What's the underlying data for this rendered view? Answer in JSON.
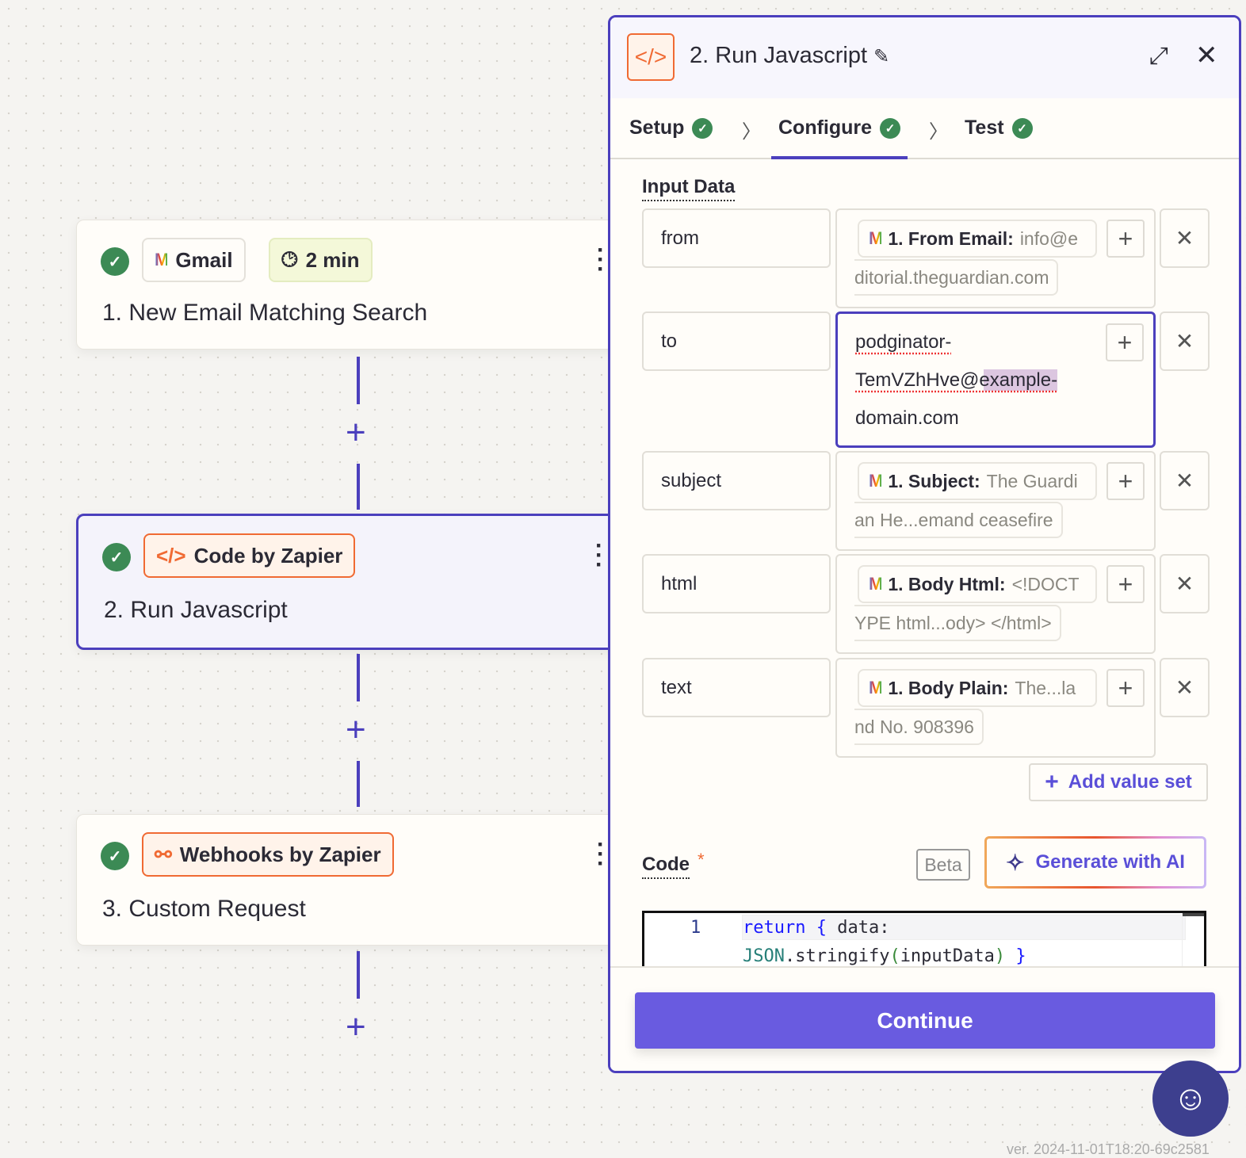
{
  "canvas": {
    "steps": [
      {
        "app": "Gmail",
        "app_icon": "gmail-icon",
        "delay": "2 min",
        "title": "1. New Email Matching Search",
        "status": "complete"
      },
      {
        "app": "Code by Zapier",
        "app_icon": "code-icon",
        "title": "2. Run Javascript",
        "status": "complete",
        "selected": true
      },
      {
        "app": "Webhooks by Zapier",
        "app_icon": "webhook-icon",
        "title": "3. Custom Request",
        "status": "complete"
      }
    ],
    "version": "ver. 2024-11-01T18:20-69c2581"
  },
  "panel": {
    "title": "2. Run Javascript",
    "tabs": [
      {
        "label": "Setup",
        "done": true
      },
      {
        "label": "Configure",
        "done": true,
        "active": true
      },
      {
        "label": "Test",
        "done": true
      }
    ],
    "input_data_label": "Input Data",
    "fields": [
      {
        "key": "from",
        "source": "1. From Email:",
        "value_a": "info@e",
        "value_b": "ditorial.theguardian.com"
      },
      {
        "key": "to",
        "lines": [
          "podginator-",
          "TemVZhHve@example-",
          "domain.com"
        ]
      },
      {
        "key": "subject",
        "source": "1. Subject:",
        "value_a": "The Guardi",
        "value_b": "an He...emand ceasefire"
      },
      {
        "key": "html",
        "source": "1. Body Html:",
        "value_a": "<!DOCT",
        "value_b": "YPE html...ody>  </html>"
      },
      {
        "key": "text",
        "source": "1. Body Plain:",
        "value_a": "The...la",
        "value_b": "nd No. 908396"
      }
    ],
    "add_value_set": "Add value set",
    "code_label": "Code",
    "required_mark": "*",
    "beta": "Beta",
    "generate_ai": "Generate with AI",
    "code": {
      "line_number": "1",
      "kw": "return",
      "b1": "{",
      "t1": " data:",
      "json": "JSON",
      "t2": ".stringify",
      "p1": "(",
      "arg": "inputData",
      "p2": ")",
      "b2": "}"
    },
    "continue": "Continue"
  },
  "colors": {
    "accent": "#4b3fbd",
    "button": "#695be0",
    "success": "#3c8a55",
    "code_orange": "#f06a33"
  }
}
